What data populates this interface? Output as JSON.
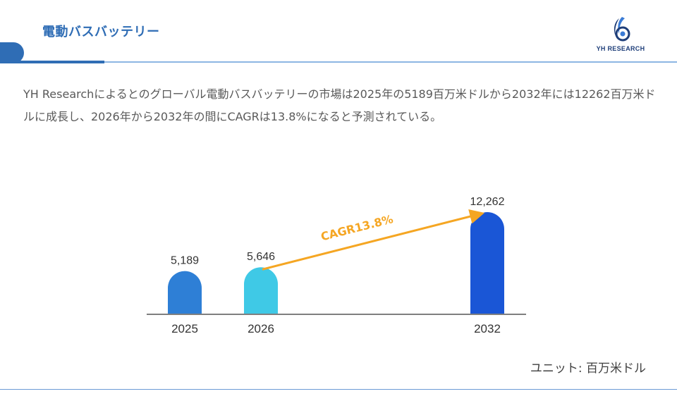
{
  "header": {
    "title": "電動バスバッテリー",
    "logo_text": "YH RESEARCH",
    "accent": "#2f6db5"
  },
  "summary": "YH Researchによるとのグローバル電動バスバッテリーの市場は2025年の5189百万米ドルから2032年には12262百万米ドルに成長し、2026年から2032年の間にCAGRは13.8%になると予測されている。",
  "chart_data": {
    "type": "bar",
    "categories": [
      "2025",
      "2026",
      "2032"
    ],
    "values": [
      5189,
      5646,
      12262
    ],
    "value_labels": [
      "5,189",
      "5,646",
      "12,262"
    ],
    "bar_colors": [
      "#2e7fd6",
      "#3fc9e6",
      "#1a56d6"
    ],
    "annotation": {
      "text": "CAGR13.8%",
      "from": "2026",
      "to": "2032",
      "color": "#f5a623"
    },
    "ylim": [
      0,
      12262
    ],
    "grid": false
  },
  "unit": "ユニット: 百万米ドル"
}
